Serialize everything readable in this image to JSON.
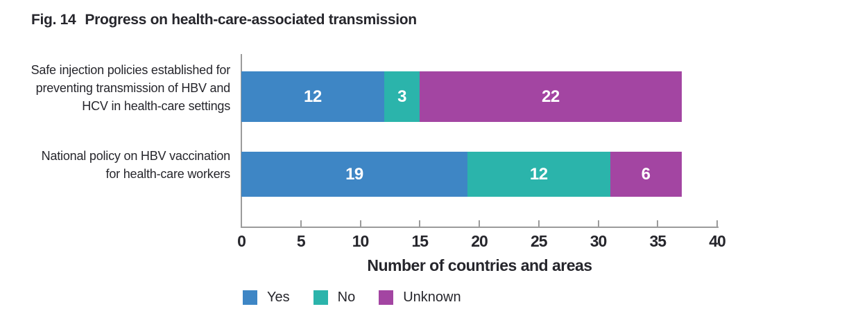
{
  "figure": {
    "label": "Fig. 14",
    "title": "Progress on health-care-associated transmission"
  },
  "chart_data": {
    "type": "bar",
    "orientation": "horizontal",
    "stacked": true,
    "categories": [
      "Safe injection policies established for preventing transmission of HBV and HCV in health-care settings",
      "National policy on HBV vaccination for health-care workers"
    ],
    "series": [
      {
        "name": "Yes",
        "color": "#3E86C5",
        "values": [
          12,
          19
        ]
      },
      {
        "name": "No",
        "color": "#2BB4AB",
        "values": [
          3,
          12
        ]
      },
      {
        "name": "Unknown",
        "color": "#A345A2",
        "values": [
          22,
          6
        ]
      }
    ],
    "totals": [
      37,
      37
    ],
    "xlabel": "Number of countries and areas",
    "xticks": [
      0,
      5,
      10,
      15,
      20,
      25,
      30,
      35,
      40
    ],
    "xlim": [
      0,
      40
    ],
    "grid": false,
    "legend_position": "bottom",
    "bar_value_labels": true
  },
  "colors": {
    "text": "#26262c",
    "axis": "#9b9b9b",
    "bar_value_text": "#ffffff"
  }
}
